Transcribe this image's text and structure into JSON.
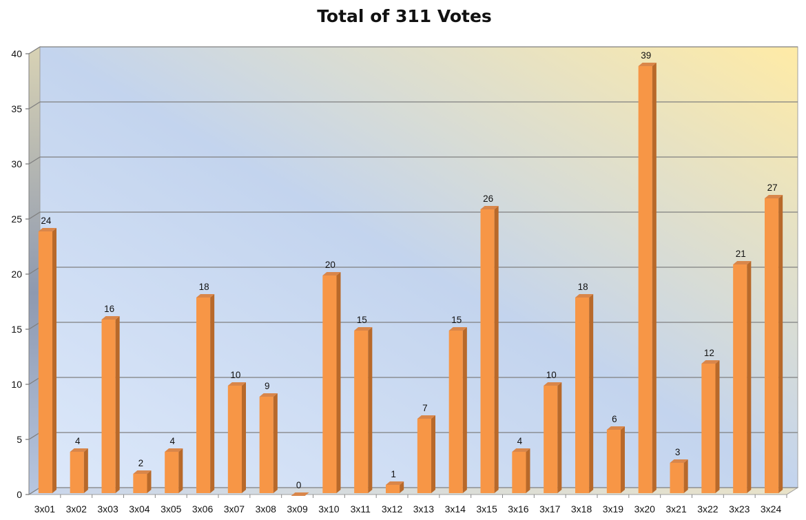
{
  "chart_data": {
    "type": "bar",
    "title": "Total of 311 Votes",
    "xlabel": "",
    "ylabel": "",
    "ylim": [
      0,
      40
    ],
    "yticks": [
      0,
      5,
      10,
      15,
      20,
      25,
      30,
      35,
      40
    ],
    "grid": true,
    "legend": "none",
    "categories": [
      "3x01",
      "3x02",
      "3x03",
      "3x04",
      "3x05",
      "3x06",
      "3x07",
      "3x08",
      "3x09",
      "3x10",
      "3x11",
      "3x12",
      "3x13",
      "3x14",
      "3x15",
      "3x16",
      "3x17",
      "3x18",
      "3x19",
      "3x20",
      "3x21",
      "3x22",
      "3x23",
      "3x24"
    ],
    "values": [
      24,
      4,
      16,
      2,
      4,
      18,
      10,
      9,
      0,
      20,
      15,
      1,
      7,
      15,
      26,
      4,
      10,
      18,
      6,
      39,
      3,
      12,
      21,
      27
    ],
    "colors": {
      "bar_front": "#F79646",
      "bar_side": "#B8692A",
      "bar_top": "#D9864A",
      "wall_left": "#DCEBFC",
      "wall_mid": "#C3D4EE",
      "wall_right": "#FFEAA8",
      "gridline": "#808080"
    }
  }
}
